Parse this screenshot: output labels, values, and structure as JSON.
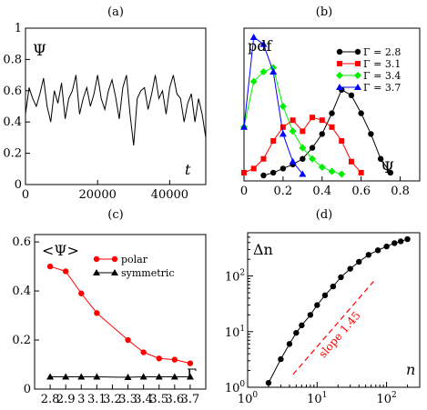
{
  "chart_data": [
    {
      "panel": "(a)",
      "type": "line",
      "ylabel": "Ψ",
      "xlabel": "t",
      "xlim": [
        0,
        50000
      ],
      "ylim": [
        0,
        1
      ],
      "xticks": [
        "0",
        "20000",
        "40000"
      ],
      "yticks": [
        "0",
        "0.2",
        "0.4",
        "0.6",
        "0.8",
        "1"
      ],
      "series": [
        {
          "color": "#000000",
          "x": [
            0,
            1000,
            2000,
            3000,
            4000,
            5000,
            6000,
            7000,
            8000,
            9000,
            10000,
            11000,
            12000,
            13000,
            14000,
            15000,
            16000,
            17000,
            18000,
            19000,
            20000,
            21000,
            22000,
            23000,
            24000,
            25000,
            26000,
            27000,
            28000,
            29000,
            30000,
            31000,
            32000,
            33000,
            34000,
            35000,
            36000,
            37000,
            38000,
            39000,
            40000,
            41000,
            42000,
            43000,
            44000,
            45000,
            46000,
            47000,
            48000,
            49000,
            50000
          ],
          "y": [
            0.45,
            0.62,
            0.55,
            0.5,
            0.58,
            0.68,
            0.5,
            0.4,
            0.6,
            0.52,
            0.65,
            0.42,
            0.55,
            0.6,
            0.7,
            0.45,
            0.55,
            0.62,
            0.5,
            0.58,
            0.7,
            0.55,
            0.48,
            0.6,
            0.67,
            0.56,
            0.42,
            0.62,
            0.7,
            0.45,
            0.25,
            0.55,
            0.6,
            0.62,
            0.48,
            0.58,
            0.7,
            0.55,
            0.6,
            0.45,
            0.62,
            0.7,
            0.58,
            0.55,
            0.4,
            0.52,
            0.58,
            0.4,
            0.55,
            0.45,
            0.3
          ]
        }
      ]
    },
    {
      "panel": "(b)",
      "type": "line",
      "ylabel": "pdf",
      "xlabel": "Ψ",
      "xlim": [
        0,
        0.9
      ],
      "xticks": [
        "0",
        "0.2",
        "0.4",
        "0.6",
        "0.8"
      ],
      "series": [
        {
          "name": "Γ = 2.8",
          "color": "#000000",
          "marker": "circle",
          "x": [
            0.1,
            0.15,
            0.2,
            0.25,
            0.3,
            0.35,
            0.4,
            0.45,
            0.5,
            0.55,
            0.6,
            0.65,
            0.7,
            0.75
          ],
          "y": [
            0.0,
            0.02,
            0.05,
            0.08,
            0.12,
            0.2,
            0.3,
            0.45,
            0.62,
            0.58,
            0.45,
            0.3,
            0.12,
            0.02
          ]
        },
        {
          "name": "Γ = 3.1",
          "color": "#ff0000",
          "marker": "square",
          "x": [
            0.0,
            0.05,
            0.1,
            0.15,
            0.2,
            0.25,
            0.3,
            0.35,
            0.4,
            0.45,
            0.5,
            0.55,
            0.6
          ],
          "y": [
            0.02,
            0.05,
            0.12,
            0.25,
            0.35,
            0.4,
            0.32,
            0.42,
            0.4,
            0.35,
            0.25,
            0.1,
            0.02
          ]
        },
        {
          "name": "Γ = 3.4",
          "color": "#00ee00",
          "marker": "diamond",
          "x": [
            0.0,
            0.05,
            0.1,
            0.15,
            0.2,
            0.25,
            0.3,
            0.35,
            0.4,
            0.45,
            0.5
          ],
          "y": [
            0.35,
            0.68,
            0.75,
            0.78,
            0.5,
            0.32,
            0.2,
            0.12,
            0.06,
            0.03,
            0.01
          ]
        },
        {
          "name": "Γ = 3.7",
          "color": "#0000ff",
          "marker": "triangle",
          "x": [
            0.0,
            0.05,
            0.1,
            0.15,
            0.2,
            0.25,
            0.3
          ],
          "y": [
            0.35,
            1.0,
            0.95,
            0.75,
            0.3,
            0.1,
            0.01
          ]
        }
      ]
    },
    {
      "panel": "(c)",
      "type": "line",
      "ylabel": "<Ψ>",
      "xlabel": "Γ",
      "xlim": [
        2.7,
        3.8
      ],
      "ylim": [
        0,
        0.63
      ],
      "xticks": [
        "2.8",
        "2.9",
        "3",
        "3.1",
        "3.2",
        "3.3",
        "3.4",
        "3.5",
        "3.6",
        "3.7"
      ],
      "yticks": [
        "0",
        "0.2",
        "0.4",
        "0.6"
      ],
      "series": [
        {
          "name": "polar",
          "color": "#ff0000",
          "marker": "circle",
          "x": [
            2.8,
            2.9,
            3.0,
            3.1,
            3.3,
            3.4,
            3.5,
            3.6,
            3.7
          ],
          "y": [
            0.5,
            0.48,
            0.39,
            0.31,
            0.2,
            0.15,
            0.125,
            0.12,
            0.105
          ]
        },
        {
          "name": "symmetric",
          "color": "#000000",
          "marker": "triangle",
          "x": [
            2.8,
            2.9,
            3.0,
            3.1,
            3.3,
            3.4,
            3.5,
            3.6,
            3.7
          ],
          "y": [
            0.05,
            0.05,
            0.05,
            0.05,
            0.048,
            0.05,
            0.05,
            0.05,
            0.05
          ]
        }
      ]
    },
    {
      "panel": "(d)",
      "type": "line",
      "ylabel": "Δn",
      "xlabel": "n",
      "xscale": "log",
      "yscale": "log",
      "xlim": [
        1,
        300
      ],
      "ylim": [
        1,
        600
      ],
      "xticks": [
        "10^0",
        "10^1",
        "10^2"
      ],
      "yticks": [
        "10^0",
        "10^1",
        "10^2"
      ],
      "annotation": "slope 1.45",
      "series": [
        {
          "color": "#000000",
          "marker": "circle",
          "x": [
            2,
            3,
            4,
            5,
            6,
            8,
            10,
            13,
            17,
            22,
            30,
            40,
            55,
            75,
            100,
            130,
            160,
            200
          ],
          "y": [
            1.2,
            3.2,
            6,
            9.5,
            13,
            20,
            30,
            45,
            65,
            95,
            135,
            180,
            240,
            290,
            340,
            390,
            420,
            460
          ]
        },
        {
          "name": "slope 1.45",
          "color": "#ff0000",
          "dash": true,
          "x": [
            4.5,
            65
          ],
          "y": [
            1.7,
            80
          ]
        }
      ]
    }
  ]
}
